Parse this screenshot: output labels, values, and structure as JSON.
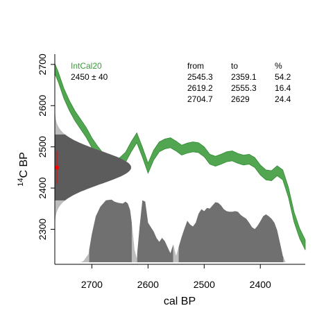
{
  "chart_data": {
    "type": "area",
    "xlabel": "cal BP",
    "ylabel": "C BP",
    "ylabel_superscript": "14",
    "x_reversed": true,
    "xlim": [
      2766,
      2320
    ],
    "ylim": [
      2215,
      2725
    ],
    "x_ticks": [
      2700,
      2600,
      2500,
      2400
    ],
    "y_ticks": [
      2300,
      2400,
      2500,
      2600,
      2700
    ],
    "curve": {
      "name": "IntCal20",
      "color": "#3a9a3a",
      "x": [
        2766,
        2760,
        2750,
        2740,
        2730,
        2720,
        2710,
        2700,
        2690,
        2680,
        2670,
        2660,
        2650,
        2640,
        2630,
        2620,
        2610,
        2600,
        2590,
        2580,
        2570,
        2560,
        2550,
        2540,
        2530,
        2520,
        2510,
        2500,
        2490,
        2480,
        2470,
        2460,
        2450,
        2440,
        2430,
        2420,
        2410,
        2400,
        2390,
        2380,
        2370,
        2360,
        2350,
        2340,
        2330,
        2320
      ],
      "mid": [
        2690,
        2670,
        2630,
        2600,
        2575,
        2555,
        2535,
        2510,
        2490,
        2473,
        2463,
        2458,
        2462,
        2475,
        2500,
        2522,
        2487,
        2448,
        2480,
        2500,
        2507,
        2510,
        2502,
        2492,
        2497,
        2500,
        2498,
        2488,
        2470,
        2465,
        2470,
        2476,
        2478,
        2472,
        2468,
        2470,
        2462,
        2444,
        2432,
        2430,
        2442,
        2432,
        2390,
        2330,
        2290,
        2262
      ],
      "half_width": 12
    },
    "measurement": {
      "mean": 2450,
      "sd": 40,
      "label": "2450 ± 40",
      "color": "#ff0000"
    },
    "posterior_probability": {
      "x": [
        2720,
        2715,
        2710,
        2706,
        2700,
        2693,
        2685,
        2675,
        2665,
        2660,
        2653,
        2645,
        2640,
        2636,
        2632,
        2628,
        2624,
        2620,
        2615,
        2610,
        2605,
        2600,
        2595,
        2590,
        2585,
        2580,
        2575,
        2570,
        2565,
        2560,
        2555,
        2550,
        2545,
        2540,
        2535,
        2530,
        2525,
        2520,
        2515,
        2510,
        2505,
        2500,
        2495,
        2490,
        2485,
        2480,
        2475,
        2470,
        2465,
        2460,
        2455,
        2450,
        2445,
        2440,
        2435,
        2430,
        2425,
        2420,
        2415,
        2410,
        2405,
        2400,
        2395,
        2390,
        2385,
        2380,
        2375,
        2370,
        2365,
        2360,
        2355
      ],
      "density": [
        0.0,
        0.02,
        0.08,
        0.13,
        0.44,
        0.72,
        0.87,
        0.97,
        0.98,
        0.95,
        0.93,
        0.92,
        0.95,
        0.92,
        0.82,
        0.55,
        0.2,
        0.06,
        0.55,
        0.97,
        0.95,
        0.62,
        0.55,
        0.48,
        0.38,
        0.32,
        0.38,
        0.33,
        0.23,
        0.14,
        0.28,
        0.1,
        0.25,
        0.4,
        0.53,
        0.65,
        0.59,
        0.56,
        0.62,
        0.76,
        0.83,
        0.8,
        0.85,
        0.84,
        0.89,
        0.94,
        0.93,
        0.89,
        0.83,
        0.8,
        0.79,
        0.79,
        0.8,
        0.79,
        0.74,
        0.71,
        0.68,
        0.62,
        0.55,
        0.52,
        0.57,
        0.64,
        0.72,
        0.75,
        0.72,
        0.68,
        0.62,
        0.5,
        0.3,
        0.1,
        0.0
      ],
      "hpd_ranges": [
        {
          "from": 2545.3,
          "to": 2359.1,
          "percent": 54.2
        },
        {
          "from": 2619.2,
          "to": 2555.3,
          "percent": 16.4
        },
        {
          "from": 2704.7,
          "to": 2629,
          "percent": 24.4
        }
      ]
    },
    "legend": {
      "headers": [
        "from",
        "to",
        "%"
      ],
      "rows": [
        [
          "2545.3",
          "2359.1",
          "54.2"
        ],
        [
          "2619.2",
          "2555.3",
          "16.4"
        ],
        [
          "2704.7",
          "2629",
          "24.4"
        ]
      ]
    }
  }
}
